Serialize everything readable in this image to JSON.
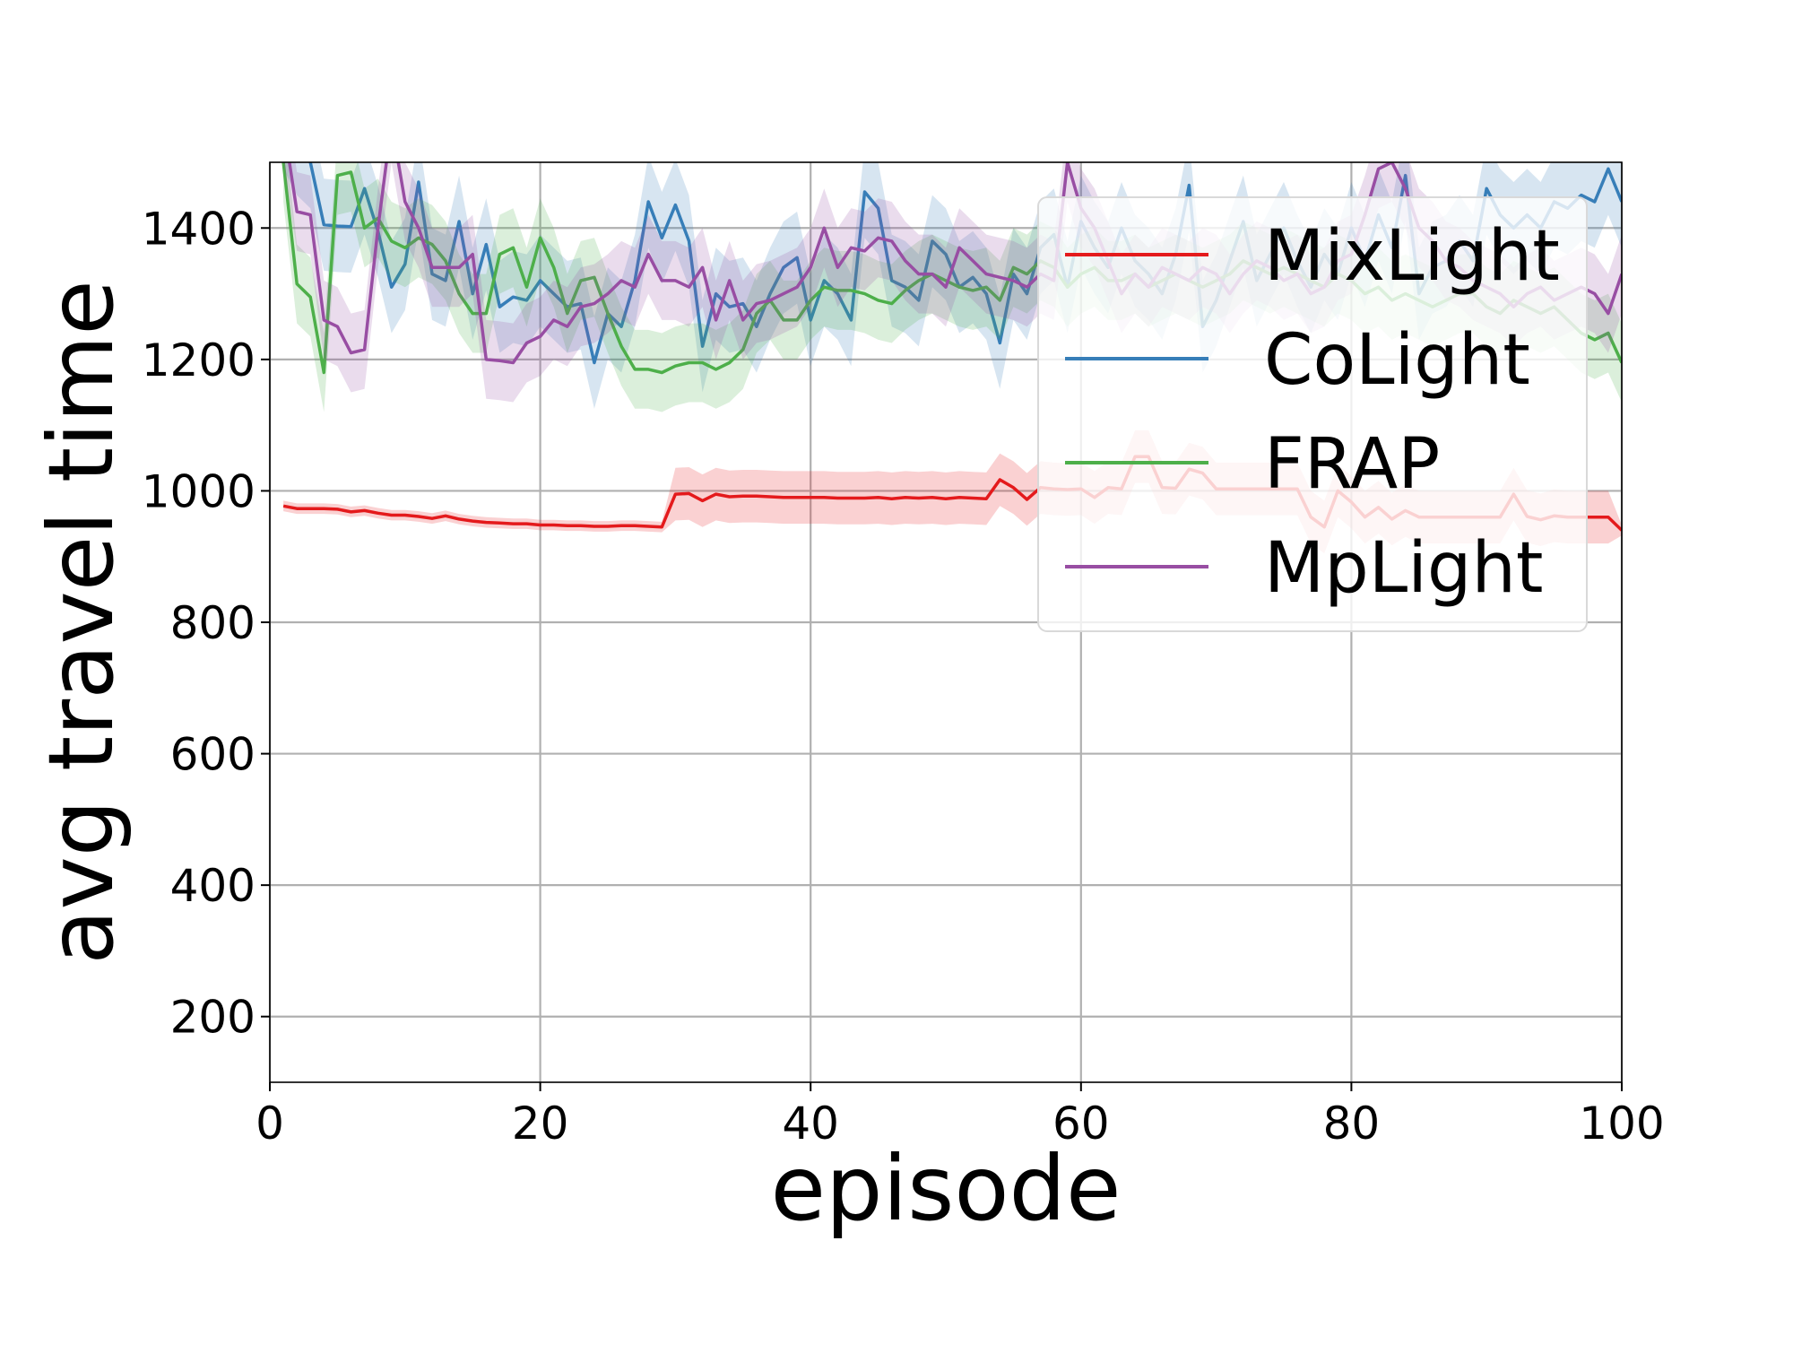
{
  "chart_data": {
    "type": "line",
    "xlabel": "episode",
    "ylabel": "avg travel time",
    "xlim": [
      0,
      100
    ],
    "ylim": [
      100,
      1500
    ],
    "xticks": [
      0,
      20,
      40,
      60,
      80,
      100
    ],
    "yticks": [
      200,
      400,
      600,
      800,
      1000,
      1200,
      1400
    ],
    "grid": true,
    "legend_position": "top-right",
    "x": [
      1,
      2,
      3,
      4,
      5,
      6,
      7,
      8,
      9,
      10,
      11,
      12,
      13,
      14,
      15,
      16,
      17,
      18,
      19,
      20,
      21,
      22,
      23,
      24,
      25,
      26,
      27,
      28,
      29,
      30,
      31,
      32,
      33,
      34,
      35,
      36,
      37,
      38,
      39,
      40,
      41,
      42,
      43,
      44,
      45,
      46,
      47,
      48,
      49,
      50,
      51,
      52,
      53,
      54,
      55,
      56,
      57,
      58,
      59,
      60,
      61,
      62,
      63,
      64,
      65,
      66,
      67,
      68,
      69,
      70,
      71,
      72,
      73,
      74,
      75,
      76,
      77,
      78,
      79,
      80,
      81,
      82,
      83,
      84,
      85,
      86,
      87,
      88,
      89,
      90,
      91,
      92,
      93,
      94,
      95,
      96,
      97,
      98,
      99,
      100
    ],
    "series": [
      {
        "name": "MixLight",
        "color": "#e41a1c",
        "values": [
          977,
          973,
          973,
          973,
          972,
          968,
          970,
          966,
          963,
          963,
          961,
          958,
          962,
          957,
          954,
          952,
          951,
          950,
          950,
          948,
          948,
          947,
          947,
          946,
          946,
          947,
          947,
          946,
          945,
          995,
          996,
          985,
          995,
          991,
          992,
          992,
          991,
          990,
          990,
          990,
          990,
          989,
          989,
          989,
          990,
          988,
          990,
          989,
          990,
          988,
          990,
          989,
          988,
          1017,
          1005,
          987,
          1005,
          1003,
          1002,
          1003,
          990,
          1005,
          1003,
          1052,
          1052,
          1005,
          1004,
          1033,
          1027,
          1003,
          1003,
          1003,
          1003,
          1003,
          1003,
          1003,
          960,
          945,
          1000,
          983,
          960,
          975,
          957,
          970,
          960,
          960,
          960,
          960,
          960,
          960,
          960,
          995,
          961,
          956,
          962,
          960,
          960,
          960,
          960,
          940
        ],
        "band": [
          8,
          8,
          8,
          8,
          8,
          8,
          8,
          8,
          8,
          8,
          8,
          8,
          8,
          8,
          8,
          8,
          8,
          8,
          8,
          8,
          8,
          8,
          8,
          8,
          8,
          8,
          8,
          8,
          8,
          40,
          40,
          40,
          40,
          40,
          40,
          40,
          40,
          40,
          40,
          40,
          40,
          40,
          40,
          40,
          40,
          40,
          40,
          40,
          40,
          40,
          40,
          40,
          40,
          40,
          40,
          40,
          40,
          40,
          40,
          40,
          40,
          40,
          40,
          40,
          40,
          40,
          40,
          40,
          40,
          40,
          40,
          40,
          40,
          40,
          40,
          40,
          40,
          40,
          40,
          40,
          40,
          40,
          40,
          40,
          40,
          40,
          40,
          40,
          40,
          40,
          40,
          40,
          40,
          40,
          40,
          40,
          40,
          40,
          40,
          8
        ]
      },
      {
        "name": "CoLight",
        "color": "#377eb8",
        "values": [
          1560,
          1520,
          1500,
          1405,
          1403,
          1402,
          1460,
          1395,
          1310,
          1345,
          1470,
          1330,
          1320,
          1410,
          1300,
          1375,
          1280,
          1295,
          1290,
          1320,
          1300,
          1280,
          1285,
          1195,
          1270,
          1250,
          1320,
          1440,
          1385,
          1435,
          1380,
          1220,
          1300,
          1280,
          1285,
          1250,
          1300,
          1340,
          1355,
          1260,
          1320,
          1300,
          1260,
          1455,
          1430,
          1320,
          1310,
          1290,
          1380,
          1360,
          1310,
          1325,
          1300,
          1225,
          1330,
          1300,
          1370,
          1390,
          1310,
          1410,
          1370,
          1340,
          1400,
          1350,
          1330,
          1300,
          1360,
          1465,
          1250,
          1290,
          1350,
          1410,
          1320,
          1360,
          1400,
          1350,
          1310,
          1360,
          1330,
          1400,
          1350,
          1420,
          1370,
          1480,
          1300,
          1340,
          1350,
          1380,
          1350,
          1460,
          1420,
          1400,
          1420,
          1400,
          1440,
          1430,
          1450,
          1440,
          1490,
          1440
        ],
        "band": [
          70,
          70,
          70,
          70,
          70,
          70,
          70,
          70,
          70,
          70,
          70,
          70,
          70,
          70,
          70,
          70,
          70,
          70,
          70,
          70,
          70,
          70,
          70,
          70,
          70,
          70,
          70,
          70,
          70,
          70,
          70,
          70,
          70,
          70,
          70,
          70,
          70,
          70,
          70,
          70,
          70,
          70,
          70,
          70,
          70,
          70,
          70,
          70,
          70,
          70,
          70,
          70,
          70,
          70,
          70,
          70,
          70,
          70,
          70,
          70,
          70,
          70,
          70,
          70,
          70,
          70,
          70,
          70,
          70,
          70,
          70,
          70,
          70,
          70,
          70,
          70,
          70,
          70,
          70,
          70,
          70,
          70,
          70,
          70,
          70,
          70,
          70,
          70,
          70,
          70,
          70,
          70,
          70,
          70,
          70,
          70,
          70,
          70,
          70,
          70
        ]
      },
      {
        "name": "FRAP",
        "color": "#4daf4a",
        "values": [
          1500,
          1315,
          1295,
          1180,
          1480,
          1485,
          1400,
          1415,
          1380,
          1370,
          1385,
          1375,
          1350,
          1300,
          1270,
          1270,
          1360,
          1370,
          1310,
          1385,
          1340,
          1270,
          1320,
          1325,
          1270,
          1220,
          1185,
          1185,
          1180,
          1190,
          1195,
          1195,
          1185,
          1195,
          1215,
          1270,
          1290,
          1260,
          1260,
          1290,
          1310,
          1305,
          1305,
          1300,
          1290,
          1285,
          1305,
          1320,
          1330,
          1320,
          1310,
          1305,
          1310,
          1290,
          1340,
          1330,
          1350,
          1340,
          1310,
          1330,
          1340,
          1320,
          1320,
          1330,
          1310,
          1320,
          1330,
          1320,
          1310,
          1320,
          1330,
          1350,
          1340,
          1330,
          1340,
          1330,
          1320,
          1310,
          1330,
          1320,
          1300,
          1310,
          1290,
          1300,
          1290,
          1280,
          1290,
          1300,
          1300,
          1280,
          1270,
          1290,
          1280,
          1270,
          1280,
          1260,
          1240,
          1230,
          1240,
          1195
        ],
        "band": [
          60,
          60,
          60,
          60,
          60,
          60,
          60,
          60,
          60,
          60,
          60,
          60,
          60,
          60,
          60,
          60,
          60,
          60,
          60,
          60,
          60,
          60,
          60,
          60,
          60,
          60,
          60,
          60,
          60,
          60,
          60,
          60,
          60,
          60,
          60,
          60,
          60,
          60,
          60,
          60,
          60,
          60,
          60,
          60,
          60,
          60,
          60,
          60,
          60,
          60,
          60,
          60,
          60,
          60,
          60,
          60,
          60,
          60,
          60,
          60,
          60,
          60,
          60,
          60,
          60,
          60,
          60,
          60,
          60,
          60,
          60,
          60,
          60,
          60,
          60,
          60,
          60,
          60,
          60,
          60,
          60,
          60,
          60,
          60,
          60,
          60,
          60,
          60,
          60,
          60,
          60,
          60,
          60,
          60,
          60,
          60,
          60,
          60,
          60,
          60
        ]
      },
      {
        "name": "MpLight",
        "color": "#984ea3",
        "values": [
          1560,
          1425,
          1420,
          1260,
          1250,
          1210,
          1215,
          1400,
          1560,
          1440,
          1400,
          1340,
          1340,
          1340,
          1360,
          1200,
          1198,
          1195,
          1225,
          1235,
          1260,
          1250,
          1280,
          1285,
          1300,
          1320,
          1310,
          1360,
          1320,
          1320,
          1310,
          1340,
          1260,
          1320,
          1260,
          1285,
          1290,
          1300,
          1310,
          1340,
          1400,
          1340,
          1370,
          1365,
          1385,
          1380,
          1350,
          1330,
          1330,
          1310,
          1370,
          1350,
          1330,
          1325,
          1320,
          1310,
          1330,
          1320,
          1500,
          1430,
          1400,
          1350,
          1300,
          1330,
          1310,
          1340,
          1330,
          1320,
          1340,
          1330,
          1300,
          1330,
          1350,
          1340,
          1320,
          1330,
          1300,
          1310,
          1350,
          1360,
          1420,
          1490,
          1500,
          1460,
          1400,
          1380,
          1350,
          1340,
          1320,
          1310,
          1300,
          1280,
          1300,
          1310,
          1290,
          1300,
          1310,
          1300,
          1270,
          1330
        ],
        "band": [
          60,
          60,
          60,
          60,
          60,
          60,
          60,
          60,
          60,
          60,
          60,
          60,
          60,
          60,
          60,
          60,
          60,
          60,
          60,
          60,
          60,
          60,
          60,
          60,
          60,
          60,
          60,
          60,
          60,
          60,
          60,
          60,
          60,
          60,
          60,
          60,
          60,
          60,
          60,
          60,
          60,
          60,
          60,
          60,
          60,
          60,
          60,
          60,
          60,
          60,
          60,
          60,
          60,
          60,
          60,
          60,
          60,
          60,
          60,
          60,
          60,
          60,
          60,
          60,
          60,
          60,
          60,
          60,
          60,
          60,
          60,
          60,
          60,
          60,
          60,
          60,
          60,
          60,
          60,
          60,
          60,
          60,
          60,
          60,
          60,
          60,
          60,
          60,
          60,
          60,
          60,
          60,
          60,
          60,
          60,
          60,
          60,
          60,
          60,
          60
        ]
      }
    ]
  }
}
